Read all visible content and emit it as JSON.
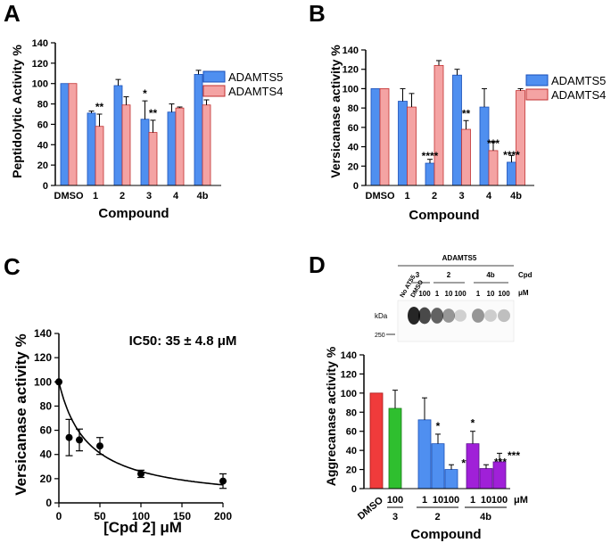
{
  "colors": {
    "adamts5": "#4f8ff0",
    "adamts4": "#f4a3a3",
    "dmso_red": "#f03b3b",
    "cpd3_green": "#2fbf2f",
    "cpd2_blue": "#4f8ff0",
    "cpd4b_purple": "#a020d8",
    "axis": "#000000"
  },
  "chart_data": [
    {
      "panel": "A",
      "type": "bar",
      "title": "",
      "xlabel": "Compound",
      "ylabel": "Peptidolytic Activity %",
      "ylim": [
        0,
        140
      ],
      "yticks": [
        "0",
        "20",
        "40",
        "60",
        "80",
        "100",
        "120",
        "140"
      ],
      "categories": [
        "DMSO",
        "1",
        "2",
        "3",
        "4",
        "4b"
      ],
      "series": [
        {
          "name": "ADAMTS5",
          "values": [
            100,
            71,
            98,
            65,
            72,
            109
          ],
          "errors": [
            0,
            2,
            6,
            18,
            8,
            4
          ]
        },
        {
          "name": "ADAMTS4",
          "values": [
            100,
            58,
            79,
            52,
            76,
            79
          ],
          "errors": [
            0,
            12,
            8,
            12,
            1,
            5
          ]
        }
      ],
      "annotations": [
        {
          "category": "1",
          "series": "ADAMTS4",
          "text": "**"
        },
        {
          "category": "3",
          "series": "ADAMTS5",
          "text": "*"
        },
        {
          "category": "3",
          "series": "ADAMTS4",
          "text": "**"
        }
      ],
      "legend": "right"
    },
    {
      "panel": "B",
      "type": "bar",
      "title": "",
      "xlabel": "Compound",
      "ylabel": "Versicanase activity %",
      "ylim": [
        0,
        140
      ],
      "yticks": [
        "0",
        "20",
        "40",
        "60",
        "80",
        "100",
        "120",
        "140"
      ],
      "categories": [
        "DMSO",
        "1",
        "2",
        "3",
        "4",
        "4b"
      ],
      "series": [
        {
          "name": "ADAMTS5",
          "values": [
            100,
            87,
            23,
            114,
            81,
            24
          ],
          "errors": [
            0,
            13,
            4,
            6,
            19,
            7
          ]
        },
        {
          "name": "ADAMTS4",
          "values": [
            100,
            81,
            124,
            58,
            36,
            98
          ],
          "errors": [
            0,
            14,
            5,
            9,
            9,
            2
          ]
        }
      ],
      "annotations": [
        {
          "category": "2",
          "series": "ADAMTS5",
          "text": "****"
        },
        {
          "category": "3",
          "series": "ADAMTS4",
          "text": "**"
        },
        {
          "category": "4",
          "series": "ADAMTS4",
          "text": "***"
        },
        {
          "category": "4b",
          "series": "ADAMTS5",
          "text": "****"
        }
      ],
      "legend": "right"
    },
    {
      "panel": "C",
      "type": "scatter",
      "xlabel": "[Cpd 2] μM",
      "ylabel": "Versicanase activity %",
      "annotation": "IC50: 35 ± 4.8 μM",
      "xlim": [
        0,
        200
      ],
      "ylim": [
        0,
        140
      ],
      "xticks": [
        "0",
        "50",
        "100",
        "150",
        "200"
      ],
      "yticks": [
        "0",
        "20",
        "40",
        "60",
        "80",
        "100",
        "120",
        "140"
      ],
      "x": [
        0,
        12.5,
        25,
        50,
        100,
        200
      ],
      "y": [
        100,
        54,
        52,
        47,
        24,
        18
      ],
      "errors": [
        0,
        15,
        9,
        7,
        3,
        6
      ],
      "fit": {
        "model": "IC50",
        "ic50": 35
      }
    },
    {
      "panel": "D",
      "type": "bar",
      "xlabel": "Compound",
      "ylabel": "Aggrecanase activity %",
      "ylim": [
        0,
        140
      ],
      "yticks": [
        "0",
        "20",
        "40",
        "60",
        "80",
        "100",
        "120",
        "140"
      ],
      "bars": [
        {
          "label": "DMSO",
          "group": "DMSO",
          "value": 100,
          "error": 0,
          "color": "dmso_red"
        },
        {
          "label": "100",
          "group": "3",
          "value": 84,
          "error": 19,
          "color": "cpd3_green"
        },
        {
          "label": "1",
          "group": "2",
          "value": 72,
          "error": 23,
          "color": "cpd2_blue"
        },
        {
          "label": "10",
          "group": "2",
          "value": 47,
          "error": 10,
          "color": "cpd2_blue",
          "sig": "*"
        },
        {
          "label": "100",
          "group": "2",
          "value": 20,
          "error": 5,
          "color": "cpd2_blue",
          "sig": "**"
        },
        {
          "label": "1",
          "group": "4b",
          "value": 47,
          "error": 13,
          "color": "cpd4b_purple",
          "sig": "*"
        },
        {
          "label": "10",
          "group": "4b",
          "value": 21,
          "error": 4,
          "color": "cpd4b_purple",
          "sig": "***"
        },
        {
          "label": "100",
          "group": "4b",
          "value": 28,
          "error": 9,
          "color": "cpd4b_purple",
          "sig": "***"
        }
      ],
      "unit_label": "μM",
      "blot": {
        "title": "ADAMTS5",
        "lanes": [
          "No AT55",
          "DMSO",
          "100",
          "1",
          "10",
          "100",
          "1",
          "10",
          "100"
        ],
        "groups": [
          "3",
          "2",
          "4b"
        ],
        "cpd_label": "Cpd",
        "unit_label": "μM",
        "kda_label": "kDa",
        "marker": "250"
      }
    }
  ],
  "panel_letters": [
    "A",
    "B",
    "C",
    "D"
  ]
}
